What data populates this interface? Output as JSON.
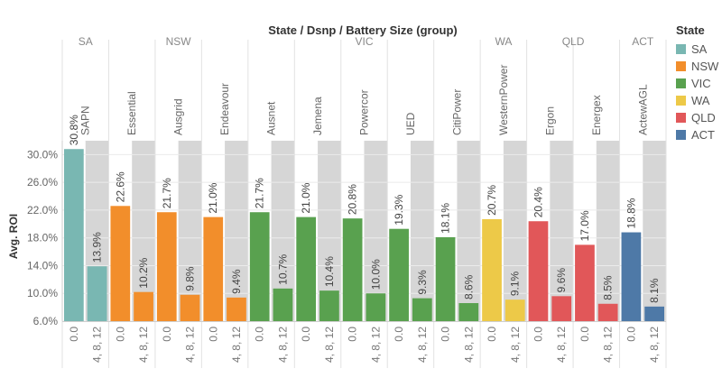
{
  "chart_data": {
    "type": "bar",
    "title": "State / Dsnp / Battery Size (group)",
    "ylabel": "Avg. ROI",
    "ylim": [
      6.0,
      32.0
    ],
    "yticks": [
      "6.0%",
      "10.0%",
      "14.0%",
      "18.0%",
      "22.0%",
      "26.0%",
      "30.0%"
    ],
    "ytick_values": [
      6.0,
      10.0,
      14.0,
      18.0,
      22.0,
      26.0,
      30.0
    ],
    "battery_groups": [
      "0.0",
      "4, 8, 12"
    ],
    "states": [
      {
        "name": "SA",
        "color": "#79b7b2",
        "dsnps": [
          {
            "name": "SAPN",
            "values": [
              30.8,
              13.9
            ],
            "labels": [
              "30.8%",
              "13.9%"
            ]
          }
        ]
      },
      {
        "name": "NSW",
        "color": "#f28e2b",
        "dsnps": [
          {
            "name": "Essential",
            "values": [
              22.6,
              10.2
            ],
            "labels": [
              "22.6%",
              "10.2%"
            ]
          },
          {
            "name": "Ausgrid",
            "values": [
              21.7,
              9.8
            ],
            "labels": [
              "21.7%",
              "9.8%"
            ]
          },
          {
            "name": "Endeavour",
            "values": [
              21.0,
              9.4
            ],
            "labels": [
              "21.0%",
              "9.4%"
            ]
          }
        ]
      },
      {
        "name": "VIC",
        "color": "#59a14f",
        "dsnps": [
          {
            "name": "Ausnet",
            "values": [
              21.7,
              10.7
            ],
            "labels": [
              "21.7%",
              "10.7%"
            ]
          },
          {
            "name": "Jemena",
            "values": [
              21.0,
              10.4
            ],
            "labels": [
              "21.0%",
              "10.4%"
            ]
          },
          {
            "name": "Powercor",
            "values": [
              20.8,
              10.0
            ],
            "labels": [
              "20.8%",
              "10.0%"
            ]
          },
          {
            "name": "UED",
            "values": [
              19.3,
              9.3
            ],
            "labels": [
              "19.3%",
              "9.3%"
            ]
          },
          {
            "name": "CitiPower",
            "values": [
              18.1,
              8.6
            ],
            "labels": [
              "18.1%",
              "8.6%"
            ]
          }
        ]
      },
      {
        "name": "WA",
        "color": "#edc948",
        "dsnps": [
          {
            "name": "WesternPower",
            "values": [
              20.7,
              9.1
            ],
            "labels": [
              "20.7%",
              "9.1%"
            ]
          }
        ]
      },
      {
        "name": "QLD",
        "color": "#e15759",
        "dsnps": [
          {
            "name": "Ergon",
            "values": [
              20.4,
              9.6
            ],
            "labels": [
              "20.4%",
              "9.6%"
            ]
          },
          {
            "name": "Energex",
            "values": [
              17.0,
              8.5
            ],
            "labels": [
              "17.0%",
              "8.5%"
            ]
          }
        ]
      },
      {
        "name": "ACT",
        "color": "#4e79a7",
        "dsnps": [
          {
            "name": "ActewAGL",
            "values": [
              18.8,
              8.1
            ],
            "labels": [
              "18.8%",
              "8.1%"
            ]
          }
        ]
      }
    ],
    "legend": {
      "title": "State",
      "position": "right",
      "items": [
        {
          "label": "SA",
          "color": "#79b7b2"
        },
        {
          "label": "NSW",
          "color": "#f28e2b"
        },
        {
          "label": "VIC",
          "color": "#59a14f"
        },
        {
          "label": "WA",
          "color": "#edc948"
        },
        {
          "label": "QLD",
          "color": "#e15759"
        },
        {
          "label": "ACT",
          "color": "#4e79a7"
        }
      ]
    }
  }
}
